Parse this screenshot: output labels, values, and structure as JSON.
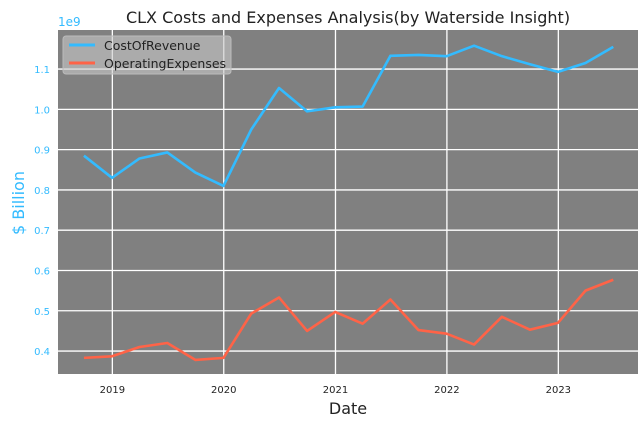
{
  "chart_data": {
    "type": "line",
    "title": "CLX Costs and Expenses Analysis(by Waterside Insight)",
    "xlabel": "Date",
    "ylabel": "$ Billion",
    "y_offset_label": "1e9",
    "x": [
      "2018-09-30",
      "2018-12-31",
      "2019-03-31",
      "2019-06-30",
      "2019-09-30",
      "2019-12-31",
      "2020-03-31",
      "2020-06-30",
      "2020-09-30",
      "2020-12-31",
      "2021-03-31",
      "2021-06-30",
      "2021-09-30",
      "2021-12-31",
      "2022-03-31",
      "2022-06-30",
      "2022-09-30",
      "2022-12-31",
      "2023-03-31",
      "2023-06-30"
    ],
    "series": [
      {
        "name": "CostOfRevenue",
        "color": "#33bbff",
        "values": [
          0.885,
          0.83,
          0.878,
          0.893,
          0.843,
          0.81,
          0.95,
          1.053,
          0.995,
          1.005,
          1.007,
          1.133,
          1.135,
          1.132,
          1.158,
          1.132,
          1.112,
          1.093,
          1.115,
          1.155
        ]
      },
      {
        "name": "OperatingExpenses",
        "color": "#ff6347",
        "values": [
          0.383,
          0.387,
          0.41,
          0.42,
          0.378,
          0.383,
          0.493,
          0.533,
          0.45,
          0.497,
          0.468,
          0.528,
          0.452,
          0.443,
          0.416,
          0.485,
          0.453,
          0.47,
          0.55,
          0.577
        ]
      }
    ],
    "xticks": [
      "2019",
      "2020",
      "2021",
      "2022",
      "2023"
    ],
    "yticks": [
      "0.4",
      "0.5",
      "0.6",
      "0.7",
      "0.8",
      "0.9",
      "1.0",
      "1.1"
    ],
    "xlim": [
      "2018-07-07",
      "2023-09-19"
    ],
    "ylim": [
      0.343,
      1.197
    ],
    "grid": true,
    "legend": "top-left",
    "background": "#808080",
    "axis_label_color": "#33bbff"
  }
}
